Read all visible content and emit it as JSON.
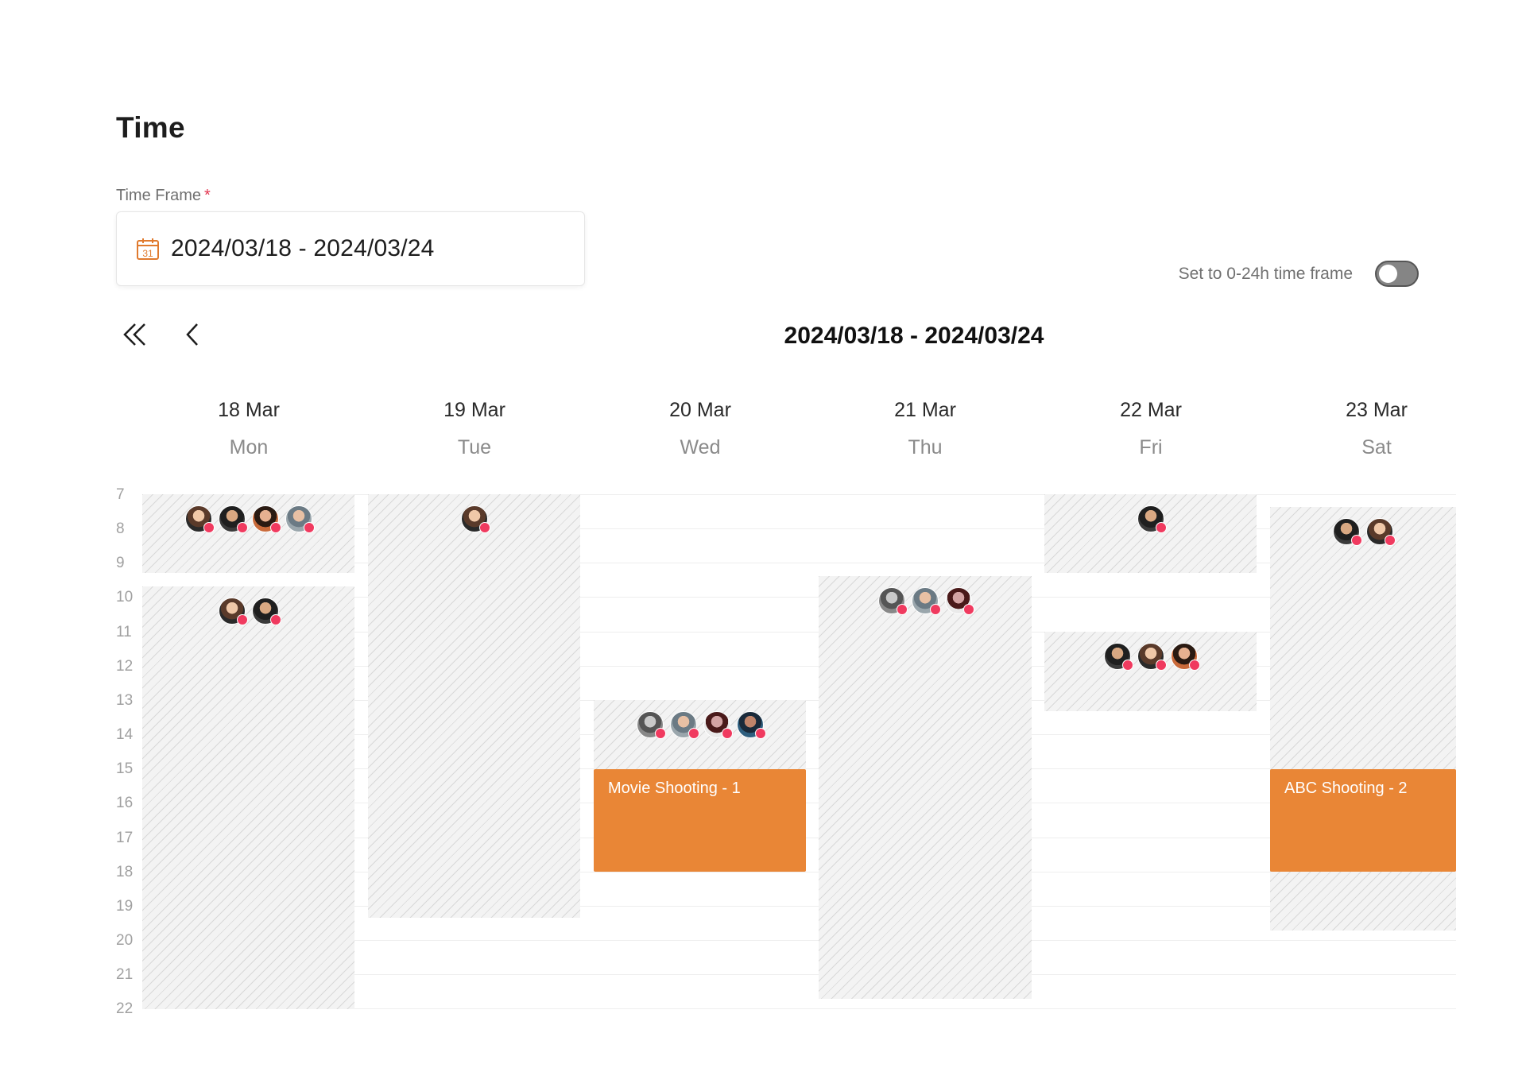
{
  "section": {
    "title": "Time",
    "time_frame_label": "Time Frame",
    "required_mark": "*",
    "time_frame_value": "2024/03/18 - 2024/03/24",
    "calendar_icon": "calendar-icon",
    "calendar_icon_day": "31"
  },
  "toggle": {
    "label": "Set to 0-24h time frame",
    "on": false
  },
  "nav": {
    "first_icon": "double-chevron-left-icon",
    "prev_icon": "chevron-left-icon",
    "week_range": "2024/03/18 - 2024/03/24"
  },
  "hours": [
    "7",
    "8",
    "9",
    "10",
    "11",
    "12",
    "13",
    "14",
    "15",
    "16",
    "17",
    "18",
    "19",
    "20",
    "21",
    "22"
  ],
  "days": [
    {
      "date": "18 Mar",
      "name": "Mon"
    },
    {
      "date": "19 Mar",
      "name": "Tue"
    },
    {
      "date": "20 Mar",
      "name": "Wed"
    },
    {
      "date": "21 Mar",
      "name": "Thu"
    },
    {
      "date": "22 Mar",
      "name": "Fri"
    },
    {
      "date": "23 Mar",
      "name": "Sat"
    }
  ],
  "events": [
    {
      "day": "Wed",
      "title": "Movie Shooting - 1",
      "start": "15:00",
      "end": "18:00",
      "color": "#e98636"
    },
    {
      "day": "Sat",
      "title": "ABC Shooting - 2",
      "start": "15:00",
      "end": "18:00",
      "color": "#e98636"
    }
  ],
  "colors": {
    "accent": "#e98636",
    "status_dot": "#f03a5f",
    "calendar_icon": "#e07a2e"
  }
}
